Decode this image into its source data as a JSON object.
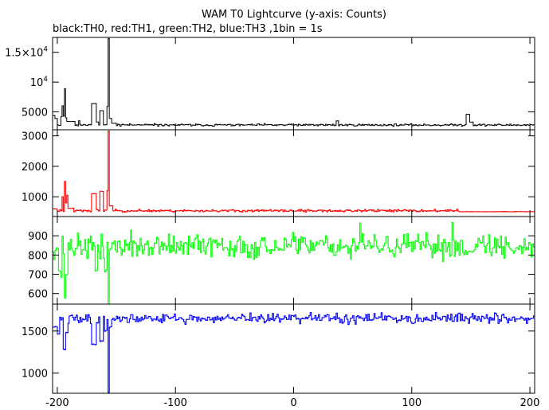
{
  "chart_data": {
    "type": "line",
    "title": "WAM T0 Lightcurve (y-axis: Counts)",
    "subtitle": "black:TH0, red:TH1, green:TH2, blue:TH3 ,1bin = 1s",
    "xlim": [
      -204,
      204
    ],
    "x_ticks": [
      -200,
      -100,
      0,
      100,
      200
    ],
    "x_tick_labels": [
      "-200",
      "-100",
      "0",
      "100",
      "200"
    ],
    "panels": [
      {
        "color": "#000000",
        "ylim": [
          2000,
          17500
        ],
        "y_ticks": [
          5000,
          10000,
          15000
        ],
        "y_tick_labels": [
          {
            "base": "5000",
            "sup": ""
          },
          {
            "base": "10",
            "sup": "4"
          },
          {
            "base": "1.5×10",
            "sup": "4"
          }
        ],
        "baseline": 2800,
        "noise": 110,
        "seed": 11,
        "features": [
          {
            "x0": -204,
            "x1": -202,
            "v": 4400
          },
          {
            "x0": -202,
            "x1": -200,
            "v": 3900
          },
          {
            "x0": -197,
            "x1": -196,
            "v": 4200
          },
          {
            "x0": -196,
            "x1": -195,
            "v": 6000
          },
          {
            "x0": -195,
            "x1": -194,
            "v": 4300
          },
          {
            "x0": -194,
            "x1": -193,
            "v": 8900
          },
          {
            "x0": -193,
            "x1": -192,
            "v": 4000
          },
          {
            "x0": -192,
            "x1": -185,
            "v": 3400
          },
          {
            "x0": -182,
            "x1": -181,
            "v": 3500
          },
          {
            "x0": -171,
            "x1": -167,
            "v": 6400
          },
          {
            "x0": -167,
            "x1": -165,
            "v": 3300
          },
          {
            "x0": -164,
            "x1": -161,
            "v": 5200
          },
          {
            "x0": -158,
            "x1": -157,
            "v": 5900
          },
          {
            "x0": -157,
            "x1": -156,
            "v": 17300
          },
          {
            "x0": -156,
            "x1": -154,
            "v": 3900
          },
          {
            "x0": -154,
            "x1": -150,
            "v": 3100
          },
          {
            "x0": 36,
            "x1": 38,
            "v": 3500
          },
          {
            "x0": 146,
            "x1": 149,
            "v": 4600
          },
          {
            "x0": 149,
            "x1": 152,
            "v": 3300
          }
        ]
      },
      {
        "color": "#ff0000",
        "ylim": [
          350,
          3200
        ],
        "y_ticks": [
          1000,
          2000,
          3000
        ],
        "y_tick_labels": [
          {
            "base": "1000",
            "sup": ""
          },
          {
            "base": "2000",
            "sup": ""
          },
          {
            "base": "3000",
            "sup": ""
          }
        ],
        "baseline": 540,
        "noise": 25,
        "seed": 23,
        "features": [
          {
            "x0": -204,
            "x1": -200,
            "v": 600
          },
          {
            "x0": -196,
            "x1": -195,
            "v": 1000
          },
          {
            "x0": -194,
            "x1": -193,
            "v": 1500
          },
          {
            "x0": -193,
            "x1": -192,
            "v": 800
          },
          {
            "x0": -192,
            "x1": -191,
            "v": 1050
          },
          {
            "x0": -191,
            "x1": -186,
            "v": 620
          },
          {
            "x0": -171,
            "x1": -167,
            "v": 1100
          },
          {
            "x0": -164,
            "x1": -161,
            "v": 1180
          },
          {
            "x0": -158,
            "x1": -157,
            "v": 1200
          },
          {
            "x0": -157,
            "x1": -156,
            "v": 3150
          },
          {
            "x0": -156,
            "x1": -153,
            "v": 700
          },
          {
            "x0": 140,
            "x1": 204,
            "v": 510
          }
        ]
      },
      {
        "color": "#00ff00",
        "ylim": [
          545,
          1000
        ],
        "y_ticks": [
          600,
          700,
          800,
          900
        ],
        "y_tick_labels": [
          {
            "base": "600",
            "sup": ""
          },
          {
            "base": "700",
            "sup": ""
          },
          {
            "base": "800",
            "sup": ""
          },
          {
            "base": "900",
            "sup": ""
          }
        ],
        "baseline": 845,
        "noise": 38,
        "seed": 37,
        "features": [
          {
            "x0": -199,
            "x1": -197,
            "v": 720
          },
          {
            "x0": -197,
            "x1": -196,
            "v": 690
          },
          {
            "x0": -194,
            "x1": -193,
            "v": 580
          },
          {
            "x0": -193,
            "x1": -191,
            "v": 700
          },
          {
            "x0": -168,
            "x1": -166,
            "v": 720
          },
          {
            "x0": -160,
            "x1": -158,
            "v": 720
          },
          {
            "x0": -157,
            "x1": -156,
            "v": 548
          },
          {
            "x0": 56,
            "x1": 57,
            "v": 960
          },
          {
            "x0": 134,
            "x1": 135,
            "v": 965
          }
        ]
      },
      {
        "color": "#0000ff",
        "ylim": [
          760,
          1820
        ],
        "y_ticks": [
          1000,
          1500
        ],
        "y_tick_labels": [
          {
            "base": "1000",
            "sup": ""
          },
          {
            "base": "1500",
            "sup": ""
          }
        ],
        "baseline": 1650,
        "noise": 35,
        "seed": 41,
        "features": [
          {
            "x0": -204,
            "x1": -200,
            "v": 1550
          },
          {
            "x0": -200,
            "x1": -198,
            "v": 1470
          },
          {
            "x0": -195,
            "x1": -193,
            "v": 1280
          },
          {
            "x0": -193,
            "x1": -191,
            "v": 1480
          },
          {
            "x0": -171,
            "x1": -167,
            "v": 1340
          },
          {
            "x0": -164,
            "x1": -161,
            "v": 1380
          },
          {
            "x0": -160,
            "x1": -158,
            "v": 1500
          },
          {
            "x0": -157,
            "x1": -156,
            "v": 770
          },
          {
            "x0": -156,
            "x1": -154,
            "v": 1550
          }
        ]
      }
    ]
  }
}
